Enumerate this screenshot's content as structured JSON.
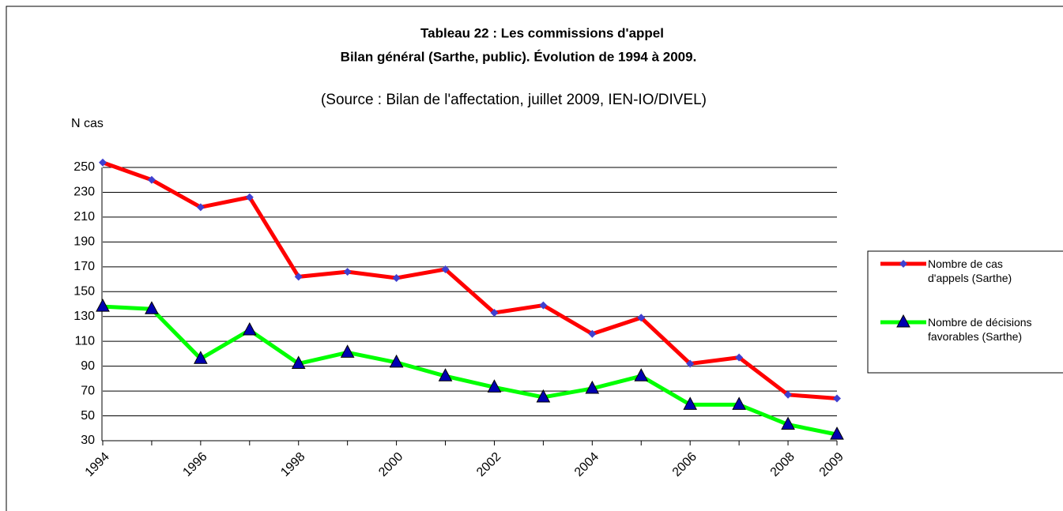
{
  "chart_data": {
    "type": "line",
    "title": "Tableau 22 : Les commissions d'appel",
    "subtitle": "Bilan général (Sarthe, public). Évolution de 1994 à 2009.",
    "annotation": "(Source : Bilan de l'affectation, juillet 2009, IEN-IO/DIVEL)",
    "y_label": "N cas",
    "categories": [
      "1994",
      null,
      "1996",
      null,
      "1998",
      null,
      "2000",
      null,
      "2002",
      null,
      "2004",
      null,
      "2006",
      null,
      "2008",
      "2009"
    ],
    "series": [
      {
        "name": "Nombre de cas d'appels (Sarthe)",
        "color": "#ff0000",
        "marker_color": "#4040d0",
        "marker": "diamond",
        "values": [
          254,
          240,
          218,
          226,
          162,
          166,
          161,
          168,
          133,
          139,
          116,
          129,
          92,
          97,
          67,
          64
        ]
      },
      {
        "name": "Nombre de décisions favorables (Sarthe)",
        "color": "#00ff00",
        "marker_color": "#0000b0",
        "marker": "triangle",
        "values": [
          138,
          136,
          96,
          119,
          92,
          101,
          93,
          82,
          73,
          65,
          72,
          82,
          59,
          59,
          43,
          35
        ]
      }
    ],
    "ylim": [
      30,
      250
    ],
    "yticks": [
      30,
      50,
      70,
      90,
      110,
      130,
      150,
      170,
      190,
      210,
      230,
      250
    ],
    "grid": true
  }
}
